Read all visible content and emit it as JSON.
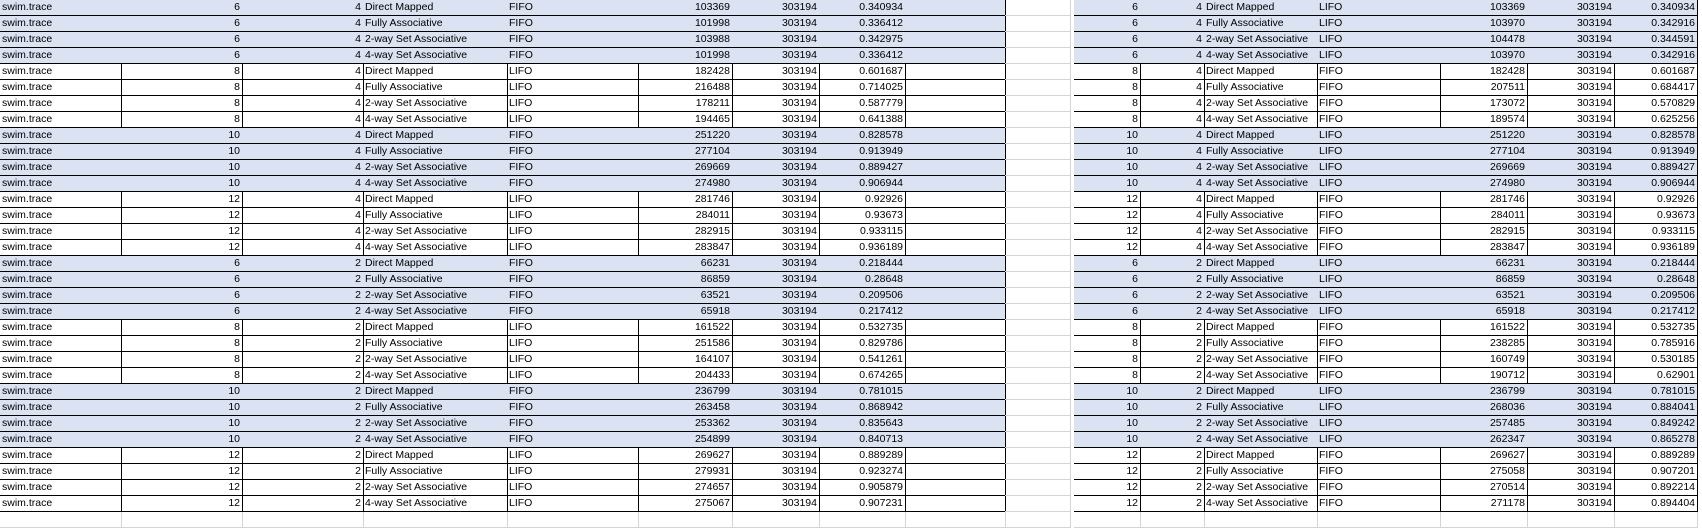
{
  "left_table": [
    [
      "swim.trace",
      "6",
      "4",
      "Direct Mapped",
      "FIFO",
      "103369",
      "303194",
      "0.340934"
    ],
    [
      "swim.trace",
      "6",
      "4",
      "Fully Associative",
      "FIFO",
      "101998",
      "303194",
      "0.336412"
    ],
    [
      "swim.trace",
      "6",
      "4",
      "2-way Set Associative",
      "FIFO",
      "103988",
      "303194",
      "0.342975"
    ],
    [
      "swim.trace",
      "6",
      "4",
      "4-way Set Associative",
      "FIFO",
      "101998",
      "303194",
      "0.336412"
    ],
    [
      "swim.trace",
      "8",
      "4",
      "Direct Mapped",
      "LIFO",
      "182428",
      "303194",
      "0.601687"
    ],
    [
      "swim.trace",
      "8",
      "4",
      "Fully Associative",
      "LIFO",
      "216488",
      "303194",
      "0.714025"
    ],
    [
      "swim.trace",
      "8",
      "4",
      "2-way Set Associative",
      "LIFO",
      "178211",
      "303194",
      "0.587779"
    ],
    [
      "swim.trace",
      "8",
      "4",
      "4-way Set Associative",
      "LIFO",
      "194465",
      "303194",
      "0.641388"
    ],
    [
      "swim.trace",
      "10",
      "4",
      "Direct Mapped",
      "FIFO",
      "251220",
      "303194",
      "0.828578"
    ],
    [
      "swim.trace",
      "10",
      "4",
      "Fully Associative",
      "FIFO",
      "277104",
      "303194",
      "0.913949"
    ],
    [
      "swim.trace",
      "10",
      "4",
      "2-way Set Associative",
      "FIFO",
      "269669",
      "303194",
      "0.889427"
    ],
    [
      "swim.trace",
      "10",
      "4",
      "4-way Set Associative",
      "FIFO",
      "274980",
      "303194",
      "0.906944"
    ],
    [
      "swim.trace",
      "12",
      "4",
      "Direct Mapped",
      "LIFO",
      "281746",
      "303194",
      "0.92926"
    ],
    [
      "swim.trace",
      "12",
      "4",
      "Fully Associative",
      "LIFO",
      "284011",
      "303194",
      "0.93673"
    ],
    [
      "swim.trace",
      "12",
      "4",
      "2-way Set Associative",
      "LIFO",
      "282915",
      "303194",
      "0.933115"
    ],
    [
      "swim.trace",
      "12",
      "4",
      "4-way Set Associative",
      "LIFO",
      "283847",
      "303194",
      "0.936189"
    ],
    [
      "swim.trace",
      "6",
      "2",
      "Direct Mapped",
      "FIFO",
      "66231",
      "303194",
      "0.218444"
    ],
    [
      "swim.trace",
      "6",
      "2",
      "Fully Associative",
      "FIFO",
      "86859",
      "303194",
      "0.28648"
    ],
    [
      "swim.trace",
      "6",
      "2",
      "2-way Set Associative",
      "FIFO",
      "63521",
      "303194",
      "0.209506"
    ],
    [
      "swim.trace",
      "6",
      "2",
      "4-way Set Associative",
      "FIFO",
      "65918",
      "303194",
      "0.217412"
    ],
    [
      "swim.trace",
      "8",
      "2",
      "Direct Mapped",
      "LIFO",
      "161522",
      "303194",
      "0.532735"
    ],
    [
      "swim.trace",
      "8",
      "2",
      "Fully Associative",
      "LIFO",
      "251586",
      "303194",
      "0.829786"
    ],
    [
      "swim.trace",
      "8",
      "2",
      "2-way Set Associative",
      "LIFO",
      "164107",
      "303194",
      "0.541261"
    ],
    [
      "swim.trace",
      "8",
      "2",
      "4-way Set Associative",
      "LIFO",
      "204433",
      "303194",
      "0.674265"
    ],
    [
      "swim.trace",
      "10",
      "2",
      "Direct Mapped",
      "FIFO",
      "236799",
      "303194",
      "0.781015"
    ],
    [
      "swim.trace",
      "10",
      "2",
      "Fully Associative",
      "FIFO",
      "263458",
      "303194",
      "0.868942"
    ],
    [
      "swim.trace",
      "10",
      "2",
      "2-way Set Associative",
      "FIFO",
      "253362",
      "303194",
      "0.835643"
    ],
    [
      "swim.trace",
      "10",
      "2",
      "4-way Set Associative",
      "FIFO",
      "254899",
      "303194",
      "0.840713"
    ],
    [
      "swim.trace",
      "12",
      "2",
      "Direct Mapped",
      "LIFO",
      "269627",
      "303194",
      "0.889289"
    ],
    [
      "swim.trace",
      "12",
      "2",
      "Fully Associative",
      "LIFO",
      "279931",
      "303194",
      "0.923274"
    ],
    [
      "swim.trace",
      "12",
      "2",
      "2-way Set Associative",
      "LIFO",
      "274657",
      "303194",
      "0.905879"
    ],
    [
      "swim.trace",
      "12",
      "2",
      "4-way Set Associative",
      "LIFO",
      "275067",
      "303194",
      "0.907231"
    ]
  ],
  "right_table": [
    [
      "6",
      "4",
      "Direct Mapped",
      "LIFO",
      "103369",
      "303194",
      "0.340934"
    ],
    [
      "6",
      "4",
      "Fully Associative",
      "LIFO",
      "103970",
      "303194",
      "0.342916"
    ],
    [
      "6",
      "4",
      "2-way Set Associative",
      "LIFO",
      "104478",
      "303194",
      "0.344591"
    ],
    [
      "6",
      "4",
      "4-way Set Associative",
      "LIFO",
      "103970",
      "303194",
      "0.342916"
    ],
    [
      "8",
      "4",
      "Direct Mapped",
      "FIFO",
      "182428",
      "303194",
      "0.601687"
    ],
    [
      "8",
      "4",
      "Fully Associative",
      "FIFO",
      "207511",
      "303194",
      "0.684417"
    ],
    [
      "8",
      "4",
      "2-way Set Associative",
      "FIFO",
      "173072",
      "303194",
      "0.570829"
    ],
    [
      "8",
      "4",
      "4-way Set Associative",
      "FIFO",
      "189574",
      "303194",
      "0.625256"
    ],
    [
      "10",
      "4",
      "Direct Mapped",
      "LIFO",
      "251220",
      "303194",
      "0.828578"
    ],
    [
      "10",
      "4",
      "Fully Associative",
      "LIFO",
      "277104",
      "303194",
      "0.913949"
    ],
    [
      "10",
      "4",
      "2-way Set Associative",
      "LIFO",
      "269669",
      "303194",
      "0.889427"
    ],
    [
      "10",
      "4",
      "4-way Set Associative",
      "LIFO",
      "274980",
      "303194",
      "0.906944"
    ],
    [
      "12",
      "4",
      "Direct Mapped",
      "FIFO",
      "281746",
      "303194",
      "0.92926"
    ],
    [
      "12",
      "4",
      "Fully Associative",
      "FIFO",
      "284011",
      "303194",
      "0.93673"
    ],
    [
      "12",
      "4",
      "2-way Set Associative",
      "FIFO",
      "282915",
      "303194",
      "0.933115"
    ],
    [
      "12",
      "4",
      "4-way Set Associative",
      "FIFO",
      "283847",
      "303194",
      "0.936189"
    ],
    [
      "6",
      "2",
      "Direct Mapped",
      "LIFO",
      "66231",
      "303194",
      "0.218444"
    ],
    [
      "6",
      "2",
      "Fully Associative",
      "LIFO",
      "86859",
      "303194",
      "0.28648"
    ],
    [
      "6",
      "2",
      "2-way Set Associative",
      "LIFO",
      "63521",
      "303194",
      "0.209506"
    ],
    [
      "6",
      "2",
      "4-way Set Associative",
      "LIFO",
      "65918",
      "303194",
      "0.217412"
    ],
    [
      "8",
      "2",
      "Direct Mapped",
      "FIFO",
      "161522",
      "303194",
      "0.532735"
    ],
    [
      "8",
      "2",
      "Fully Associative",
      "FIFO",
      "238285",
      "303194",
      "0.785916"
    ],
    [
      "8",
      "2",
      "2-way Set Associative",
      "FIFO",
      "160749",
      "303194",
      "0.530185"
    ],
    [
      "8",
      "2",
      "4-way Set Associative",
      "FIFO",
      "190712",
      "303194",
      "0.62901"
    ],
    [
      "10",
      "2",
      "Direct Mapped",
      "LIFO",
      "236799",
      "303194",
      "0.781015"
    ],
    [
      "10",
      "2",
      "Fully Associative",
      "LIFO",
      "268036",
      "303194",
      "0.884041"
    ],
    [
      "10",
      "2",
      "2-way Set Associative",
      "LIFO",
      "257485",
      "303194",
      "0.849242"
    ],
    [
      "10",
      "2",
      "4-way Set Associative",
      "LIFO",
      "262347",
      "303194",
      "0.865278"
    ],
    [
      "12",
      "2",
      "Direct Mapped",
      "FIFO",
      "269627",
      "303194",
      "0.889289"
    ],
    [
      "12",
      "2",
      "Fully Associative",
      "FIFO",
      "275058",
      "303194",
      "0.907201"
    ],
    [
      "12",
      "2",
      "2-way Set Associative",
      "FIFO",
      "270514",
      "303194",
      "0.892214"
    ],
    [
      "12",
      "2",
      "4-way Set Associative",
      "FIFO",
      "271178",
      "303194",
      "0.894404"
    ]
  ],
  "highlight_rows": [
    0,
    1,
    2,
    3,
    8,
    9,
    10,
    11,
    16,
    17,
    18,
    19,
    24,
    25,
    26,
    27
  ],
  "colors": {
    "highlight": "#dbe2f1",
    "gridline": "#c8c8c8",
    "dark_border": "#000000"
  }
}
